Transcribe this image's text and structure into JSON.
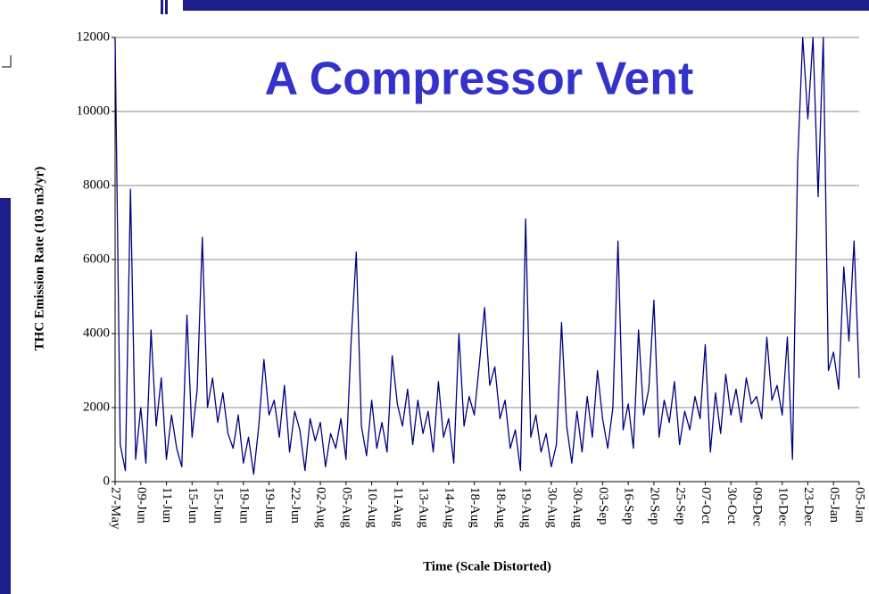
{
  "chart_data": {
    "type": "line",
    "title": "A Compressor Vent",
    "x_label": "Time (Scale Distorted)",
    "y_label": "THC Emission Rate (103 m3/yr)",
    "categories": [
      "27-May",
      null,
      null,
      null,
      null,
      "09-Jun",
      null,
      null,
      null,
      null,
      "11-Jun",
      null,
      null,
      null,
      null,
      "15-Jun",
      null,
      null,
      null,
      null,
      "15-Jun",
      null,
      null,
      null,
      null,
      "19-Jun",
      null,
      null,
      null,
      null,
      "19-Jun",
      null,
      null,
      null,
      null,
      "22-Jun",
      null,
      null,
      null,
      null,
      "02-Aug",
      null,
      null,
      null,
      null,
      "05-Aug",
      null,
      null,
      null,
      null,
      "10-Aug",
      null,
      null,
      null,
      null,
      "11-Aug",
      null,
      null,
      null,
      null,
      "13-Aug",
      null,
      null,
      null,
      null,
      "14-Aug",
      null,
      null,
      null,
      null,
      "18-Aug",
      null,
      null,
      null,
      null,
      "18-Aug",
      null,
      null,
      null,
      null,
      "19-Aug",
      null,
      null,
      null,
      null,
      "30-Aug",
      null,
      null,
      null,
      null,
      "30-Aug",
      null,
      null,
      null,
      null,
      "03-Sep",
      null,
      null,
      null,
      null,
      "16-Sep",
      null,
      null,
      null,
      null,
      "20-Sep",
      null,
      null,
      null,
      null,
      "25-Sep",
      null,
      null,
      null,
      null,
      "07-Oct",
      null,
      null,
      null,
      null,
      "30-Oct",
      null,
      null,
      null,
      null,
      "09-Dec",
      null,
      null,
      null,
      null,
      "10-Dec",
      null,
      null,
      null,
      null,
      "23-Dec",
      null,
      null,
      null,
      null,
      "05-Jan",
      null,
      null,
      null,
      null,
      "05-Jan"
    ],
    "series": [
      {
        "name": "THC",
        "color": "#000080",
        "values": [
          12000,
          1000,
          300,
          7900,
          600,
          2000,
          500,
          4100,
          1500,
          2800,
          600,
          1800,
          900,
          400,
          4500,
          1200,
          2500,
          6600,
          2000,
          2800,
          1600,
          2400,
          1300,
          900,
          1800,
          500,
          1200,
          200,
          1500,
          3300,
          1800,
          2200,
          1200,
          2600,
          800,
          1900,
          1400,
          300,
          1700,
          1100,
          1600,
          400,
          1300,
          900,
          1700,
          600,
          3800,
          6200,
          1500,
          700,
          2200,
          900,
          1600,
          800,
          3400,
          2100,
          1500,
          2500,
          1000,
          2200,
          1300,
          1900,
          800,
          2700,
          1200,
          1700,
          500,
          4000,
          1500,
          2300,
          1800,
          3200,
          4700,
          2600,
          3100,
          1700,
          2200,
          900,
          1400,
          300,
          7100,
          1200,
          1800,
          800,
          1300,
          400,
          1000,
          4300,
          1500,
          500,
          1900,
          800,
          2300,
          1200,
          3000,
          1700,
          900,
          2000,
          6500,
          1400,
          2100,
          900,
          4100,
          1800,
          2500,
          4900,
          1200,
          2200,
          1600,
          2700,
          1000,
          1900,
          1400,
          2300,
          1700,
          3700,
          800,
          2400,
          1300,
          2900,
          1800,
          2500,
          1600,
          2800,
          2100,
          2300,
          1700,
          3900,
          2200,
          2600,
          1800,
          3900,
          600,
          8600,
          12000,
          9800,
          12000,
          7700,
          12000,
          3000,
          3500,
          2500,
          5800,
          3800,
          6500,
          2800
        ]
      }
    ],
    "ylim": [
      0,
      12000
    ],
    "yticks": [
      0,
      2000,
      4000,
      6000,
      8000,
      10000,
      12000
    ],
    "grid": true
  }
}
